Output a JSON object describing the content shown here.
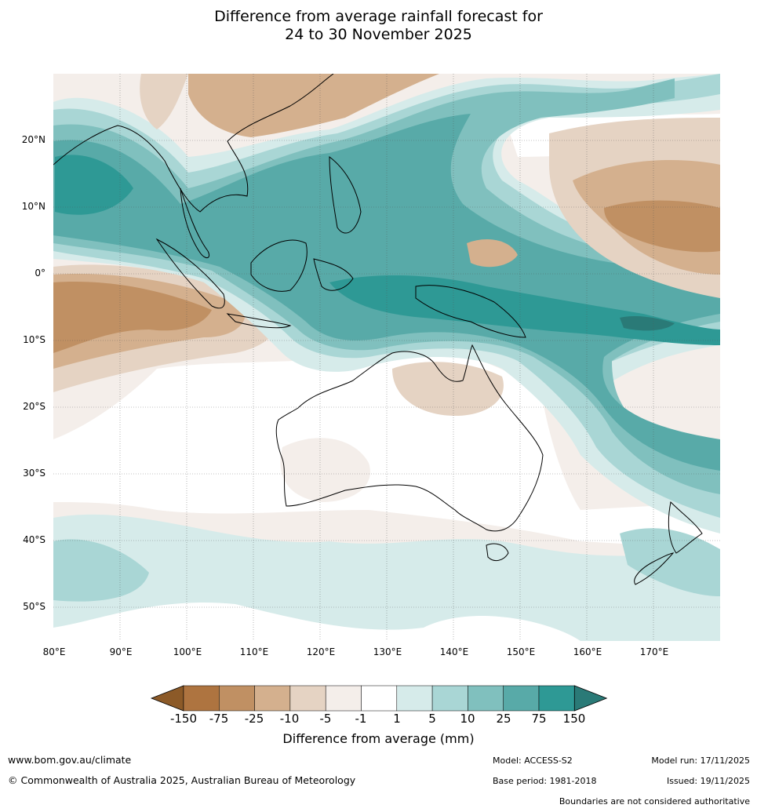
{
  "title_line1": "Difference from average rainfall forecast for",
  "title_line2": "24 to 30 November 2025",
  "latitude_labels": [
    "20°N",
    "10°N",
    "0°",
    "10°S",
    "20°S",
    "30°S",
    "40°S",
    "50°S"
  ],
  "longitude_labels": [
    "80°E",
    "90°E",
    "100°E",
    "110°E",
    "120°E",
    "130°E",
    "140°E",
    "150°E",
    "160°E",
    "170°E"
  ],
  "colorbar": {
    "title": "Difference from average (mm)",
    "tick_labels": [
      "-150",
      "-75",
      "-25",
      "-10",
      "-5",
      "-1",
      "1",
      "5",
      "10",
      "25",
      "75",
      "150"
    ],
    "colors": [
      "#8c5a28",
      "#ae7440",
      "#c09063",
      "#d4b08e",
      "#e5d3c3",
      "#f4eeea",
      "#ffffff",
      "#d6ebea",
      "#a9d6d5",
      "#80c0be",
      "#58aaa8",
      "#2e9995",
      "#2a7a77"
    ]
  },
  "footer": {
    "website": "www.bom.gov.au/climate",
    "copyright": "© Commonwealth of Australia 2025, Australian Bureau of Meteorology",
    "model": "Model: ACCESS-S2",
    "base_period": "Base period: 1981-2018",
    "model_run": "Model run: 17/11/2025",
    "issued": "Issued: 19/11/2025",
    "disclaimer": "Boundaries are not considered authoritative"
  }
}
